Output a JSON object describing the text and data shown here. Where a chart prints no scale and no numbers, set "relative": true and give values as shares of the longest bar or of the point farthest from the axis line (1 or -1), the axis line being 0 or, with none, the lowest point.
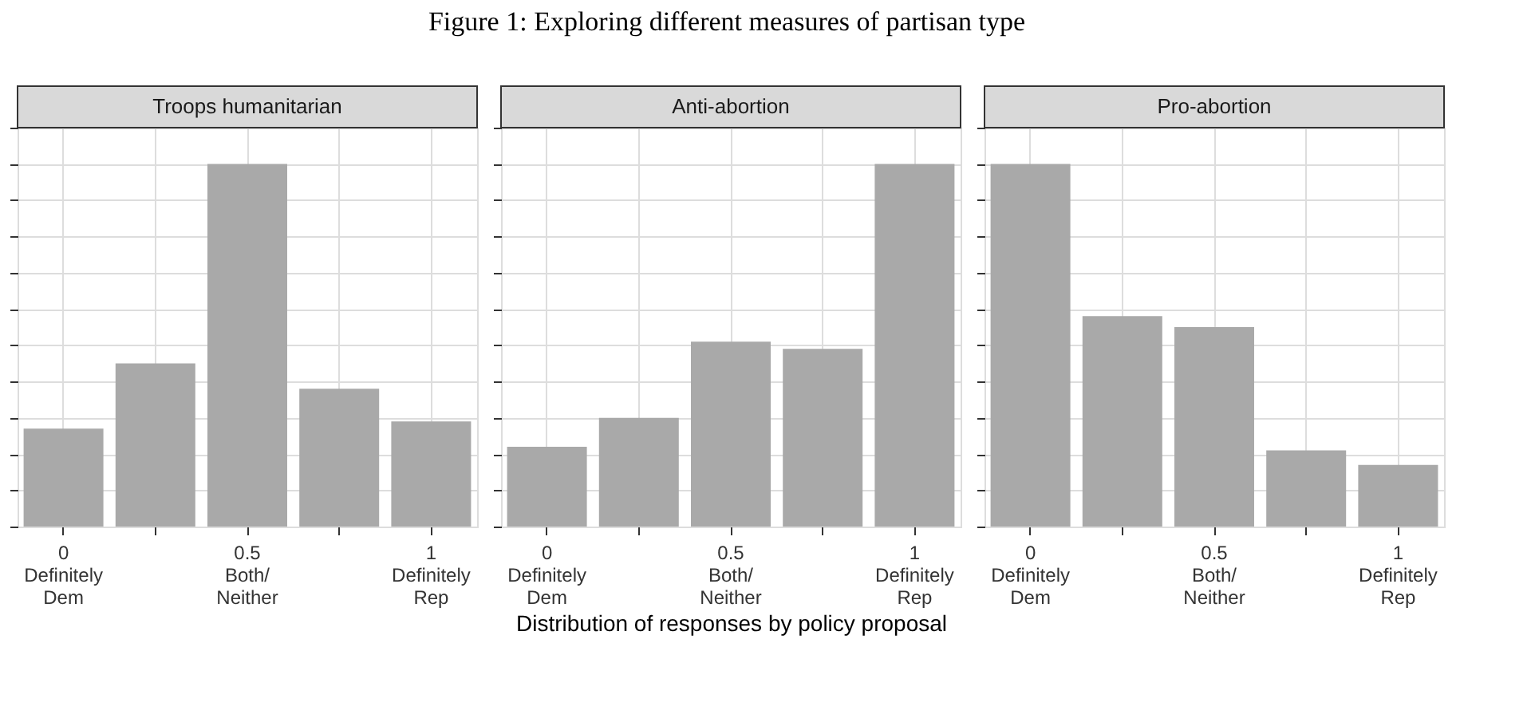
{
  "chart_data": [
    {
      "type": "bar",
      "title": "Troops humanitarian",
      "annotations": [
        "Figure 1: Exploring different measures of partisan type"
      ],
      "categories": [
        "0\nDefinitely\nDem",
        null,
        "0.5\nBoth/\nNeither",
        null,
        "1\nDefinitely\nRep"
      ],
      "values": [
        0.27,
        0.45,
        1.0,
        0.38,
        0.29
      ],
      "color": "#a9a9a9",
      "relative": true,
      "grid": true,
      "tick_labels": "x"
    },
    {
      "type": "bar",
      "title": "Anti-abortion",
      "xlabel": "Distribution of responses by policy proposal",
      "categories": [
        "0\nDefinitely\nDem",
        null,
        "0.5\nBoth/\nNeither",
        null,
        "1\nDefinitely\nRep"
      ],
      "values": [
        0.22,
        0.3,
        0.51,
        0.49,
        1.0
      ],
      "color": "#a9a9a9",
      "relative": true,
      "grid": true,
      "tick_labels": "x"
    },
    {
      "type": "bar",
      "title": "Pro-abortion",
      "categories": [
        "0\nDefinitely\nDem",
        null,
        "0.5\nBoth/\nNeither",
        null,
        "1\nDefinitely\nRep"
      ],
      "values": [
        1.0,
        0.58,
        0.55,
        0.21,
        0.17
      ],
      "color": "#a9a9a9",
      "relative": true,
      "grid": true,
      "tick_labels": "x"
    }
  ]
}
